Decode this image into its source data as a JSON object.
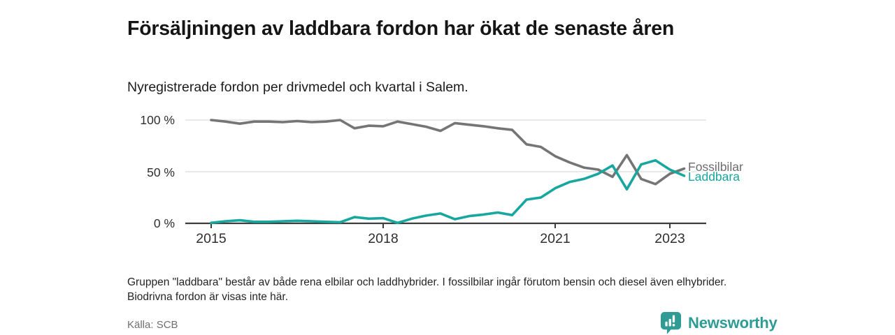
{
  "header": {
    "title": "Försäljningen av laddbara fordon har ökat de senaste åren",
    "subtitle": "Nyregistrerade fordon per drivmedel och kvartal i Salem."
  },
  "chart_data": {
    "type": "line",
    "title": "Nyregistrerade fordon per drivmedel och kvartal i Salem",
    "x": [
      "2015 K1",
      "2015 K2",
      "2015 K3",
      "2015 K4",
      "2016 K1",
      "2016 K2",
      "2016 K3",
      "2016 K4",
      "2017 K1",
      "2017 K2",
      "2017 K3",
      "2017 K4",
      "2018 K1",
      "2018 K2",
      "2018 K3",
      "2018 K4",
      "2019 K1",
      "2019 K2",
      "2019 K3",
      "2019 K4",
      "2020 K1",
      "2020 K2",
      "2020 K3",
      "2020 K4",
      "2021 K1",
      "2021 K2",
      "2021 K3",
      "2021 K4",
      "2022 K1",
      "2022 K2",
      "2022 K3",
      "2022 K4",
      "2023 K1",
      "2023 K2"
    ],
    "series": [
      {
        "name": "Fossilbilar",
        "color": "#757575",
        "label_color": "#6d6d6d",
        "values": [
          100,
          98.5,
          96.5,
          98.5,
          98.5,
          98,
          99,
          98,
          98.5,
          100,
          92,
          94.5,
          94,
          98.5,
          96,
          93.5,
          89.5,
          97,
          95.5,
          94,
          92,
          90.5,
          76.5,
          74,
          65,
          59,
          54,
          52,
          45,
          66,
          43,
          38,
          48,
          53
        ]
      },
      {
        "name": "Laddbara",
        "color": "#17a79e",
        "label_color": "#17a79e",
        "values": [
          0.5,
          2,
          3,
          1.5,
          1.5,
          2,
          2.5,
          2,
          1.5,
          1,
          6,
          4.5,
          5,
          0.5,
          4.5,
          7.5,
          9.5,
          4,
          7,
          8.5,
          10.5,
          8,
          23,
          25,
          34,
          40,
          43,
          48,
          56,
          33,
          57,
          61,
          52,
          46
        ]
      }
    ],
    "y_unit": "%",
    "ylim": [
      0,
      100
    ],
    "y_ticks": [
      "100 %",
      "50 %",
      "0 %"
    ],
    "x_ticks": [
      "2015",
      "2018",
      "2021",
      "2023"
    ],
    "grid": "horizontal",
    "legend": "end-of-line-labels"
  },
  "footnote": "Gruppen \"laddbara\" består av både rena elbilar och laddhybrider. I fossilbilar ingår förutom bensin och diesel även elhybrider. Biodrivna fordon är visas inte här.",
  "source": "Källa: SCB",
  "logo": {
    "text": "Newsworthy",
    "color": "#2e9c94",
    "icon": "newsworthy-pin-bar-chart-icon"
  }
}
